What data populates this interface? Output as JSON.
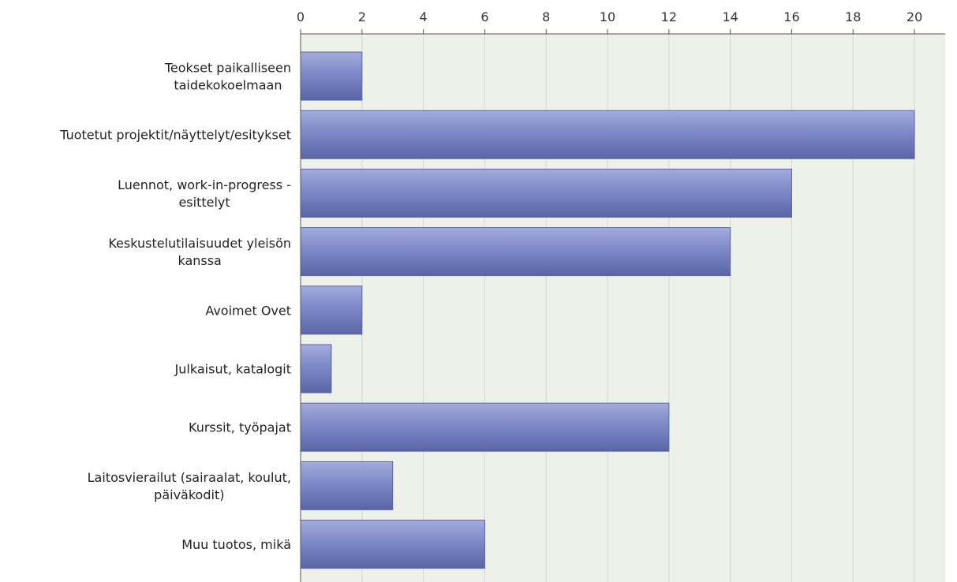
{
  "chart_data": {
    "type": "bar",
    "orientation": "horizontal",
    "categories": [
      [
        "Teokset paikalliseen",
        "taidekokoelmaan"
      ],
      [
        "Tuotetut projektit/näyttelyt/esitykset"
      ],
      [
        "Luennot, work-in-progress -",
        "esittelyt"
      ],
      [
        "Keskustelutilaisuudet yleisön",
        "kanssa"
      ],
      [
        "Avoimet Ovet"
      ],
      [
        "Julkaisut, katalogit"
      ],
      [
        "Kurssit, työpajat"
      ],
      [
        "Laitosvierailut (sairaalat, koulut,",
        "päiväkodit)"
      ],
      [
        "Muu tuotos, mikä"
      ]
    ],
    "values": [
      2,
      20,
      16,
      14,
      2,
      1,
      12,
      3,
      6
    ],
    "x_ticks": [
      "0",
      "2",
      "4",
      "6",
      "8",
      "10",
      "12",
      "14",
      "16",
      "18",
      "20"
    ],
    "xlim": [
      0,
      21
    ],
    "x_axis_position": "top",
    "grid": true,
    "title": "",
    "xlabel": "",
    "ylabel": "",
    "colors": {
      "bar": "#7d89c8",
      "bar_light": "#a3acdc",
      "bar_dark": "#5a65a6",
      "plot_background": "#eef0ea",
      "grid": "#d4d7cf",
      "axis": "#555555"
    }
  }
}
